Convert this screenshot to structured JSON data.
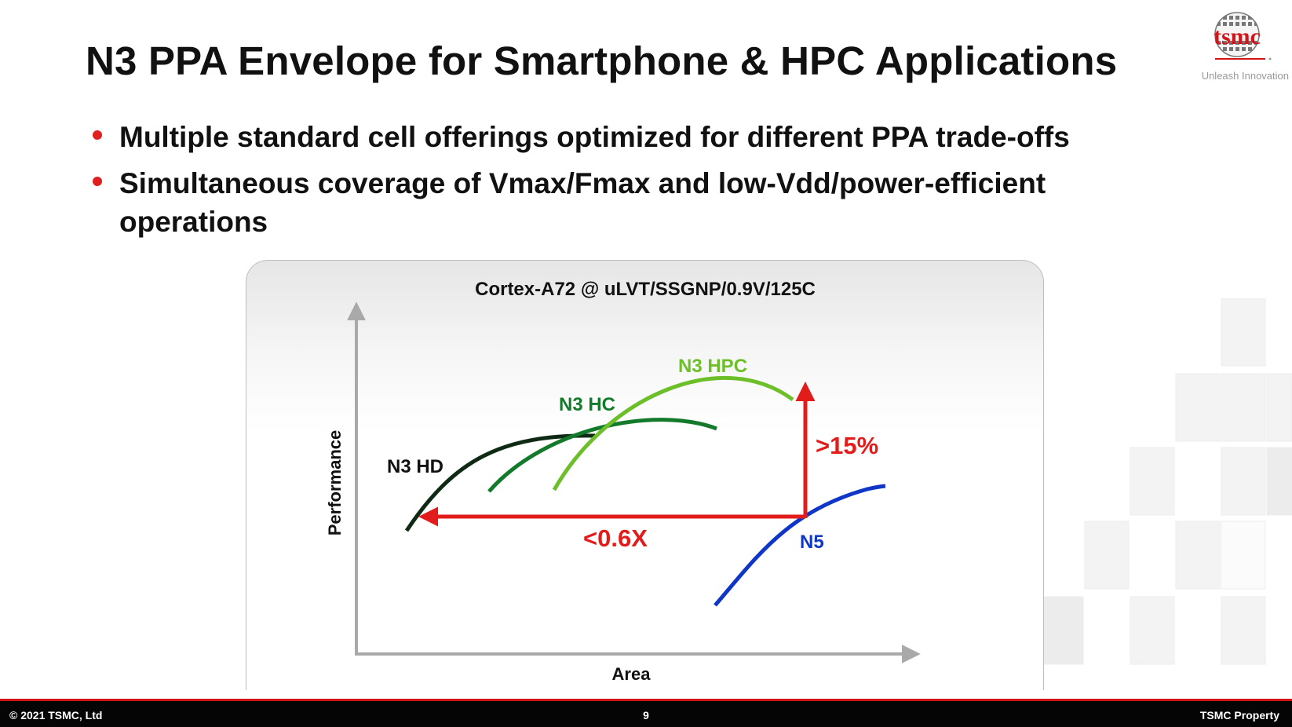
{
  "slide": {
    "title": "N3 PPA Envelope for Smartphone & HPC Applications",
    "bullets": [
      "Multiple standard cell offerings optimized for different PPA trade-offs",
      "Simultaneous coverage of Vmax/Fmax and low-Vdd/power-efficient operations"
    ]
  },
  "logo": {
    "brand": "tsmc",
    "tagline": "Unleash Innovation"
  },
  "chart_data": {
    "type": "line",
    "title": "Cortex-A72 @ uLVT/SSGNP/0.9V/125C",
    "xlabel": "Area",
    "ylabel": "Performance",
    "series": [
      {
        "name": "N3 HD",
        "color": "#0f2a14"
      },
      {
        "name": "N3 HC",
        "color": "#137a2c"
      },
      {
        "name": "N3 HPC",
        "color": "#6dbf2a"
      },
      {
        "name": "N5",
        "color": "#1036c8"
      }
    ],
    "annotations": [
      {
        "text": ">15%",
        "color": "#e21b1b"
      },
      {
        "text": "<0.6X",
        "color": "#e21b1b"
      }
    ],
    "grid": false
  },
  "footer": {
    "copyright": "© 2021 TSMC, Ltd",
    "page_number": "9",
    "label": "TSMC Property"
  },
  "colors": {
    "accent_red": "#d3151b",
    "footer_bg": "#050505"
  }
}
